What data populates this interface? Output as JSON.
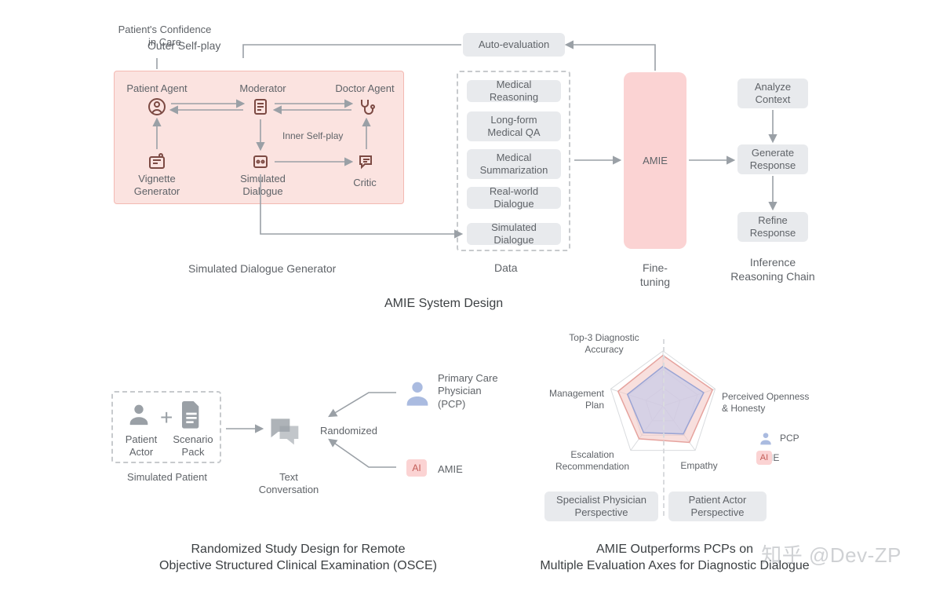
{
  "colors": {
    "text": "#5f6368",
    "title": "#3c4043",
    "pill_bg": "#e8eaed",
    "selfplay_bg": "#fbe3e0",
    "selfplay_border": "#f3b9b2",
    "amie_bg": "#fbd3d3",
    "icon_brown": "#7c4a43",
    "icon_gray": "#9aa0a6",
    "dashed": "#c7cacd",
    "pcp_blue_fill": "#c7cbe8",
    "pcp_blue_stroke": "#9aa4d4",
    "amie_pink_fill": "#f3c9c7",
    "amie_pink_stroke": "#e6a39e",
    "radar_grid": "#d9dbde"
  },
  "top": {
    "confidence_label": "Patient's Confidence\nin Care",
    "outer_selfplay": "Outer Self-play",
    "agents": {
      "patient": "Patient Agent",
      "moderator": "Moderator",
      "doctor": "Doctor Agent",
      "vignette": "Vignette\nGenerator",
      "simdialogue": "Simulated\nDialogue",
      "critic": "Critic",
      "inner_selfplay": "Inner Self-play"
    },
    "sim_gen_label": "Simulated Dialogue Generator",
    "auto_eval": "Auto-evaluation",
    "data_label": "Data",
    "data_items": [
      "Medical Reasoning",
      "Long-form\nMedical QA",
      "Medical\nSummarization",
      "Real-world Dialogue",
      "Simulated Dialogue"
    ],
    "amie": "AMIE",
    "fine_tuning": "Fine-tuning",
    "chain": {
      "label": "Inference\nReasoning Chain",
      "steps": [
        "Analyze\nContext",
        "Generate\nResponse",
        "Refine\nResponse"
      ]
    },
    "title": "AMIE System Design"
  },
  "bottom_left": {
    "patient_actor": "Patient\nActor",
    "scenario_pack": "Scenario\nPack",
    "simulated_patient": "Simulated Patient",
    "text_conversation": "Text Conversation",
    "randomized": "Randomized",
    "pcp": "Primary Care\nPhysician\n(PCP)",
    "amie": "AMIE",
    "title": "Randomized Study Design for Remote\nObjective Structured Clinical Examination (OSCE)"
  },
  "bottom_right": {
    "axes": [
      "Top-3 Diagnostic\nAccuracy",
      "Perceived Openness\n& Honesty",
      "Empathy",
      "Escalation\nRecommendation",
      "Management\nPlan"
    ],
    "radar": {
      "pcp": [
        0.72,
        0.78,
        0.63,
        0.6,
        0.68
      ],
      "amie": [
        0.92,
        0.95,
        0.82,
        0.74,
        0.86
      ],
      "rings": [
        0.33,
        0.66,
        1.0
      ]
    },
    "perspectives": [
      "Specialist Physician\nPerspective",
      "Patient Actor\nPerspective"
    ],
    "legend": {
      "pcp": "PCP",
      "amie": "AMIE"
    },
    "title": "AMIE Outperforms PCPs on\nMultiple Evaluation Axes for Diagnostic Dialogue"
  },
  "watermark": "知乎 @Dev-ZP"
}
